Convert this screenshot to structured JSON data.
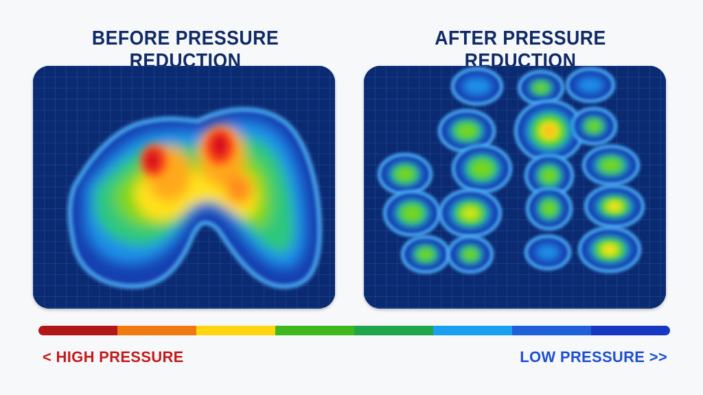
{
  "panels": {
    "before": {
      "title": "BEFORE PRESSURE REDUCTION"
    },
    "after": {
      "title": "AFTER PRESSURE REDUCTION"
    }
  },
  "scale": {
    "colors": [
      "#b01818",
      "#f07a10",
      "#ffd410",
      "#3fb81c",
      "#1fa64a",
      "#1aa0f0",
      "#1f5fd8",
      "#1638c0"
    ],
    "high_label": "< HIGH PRESSURE",
    "low_label": "LOW PRESSURE >>",
    "high_color": "#c41a1a",
    "low_color": "#1d4fd1"
  }
}
